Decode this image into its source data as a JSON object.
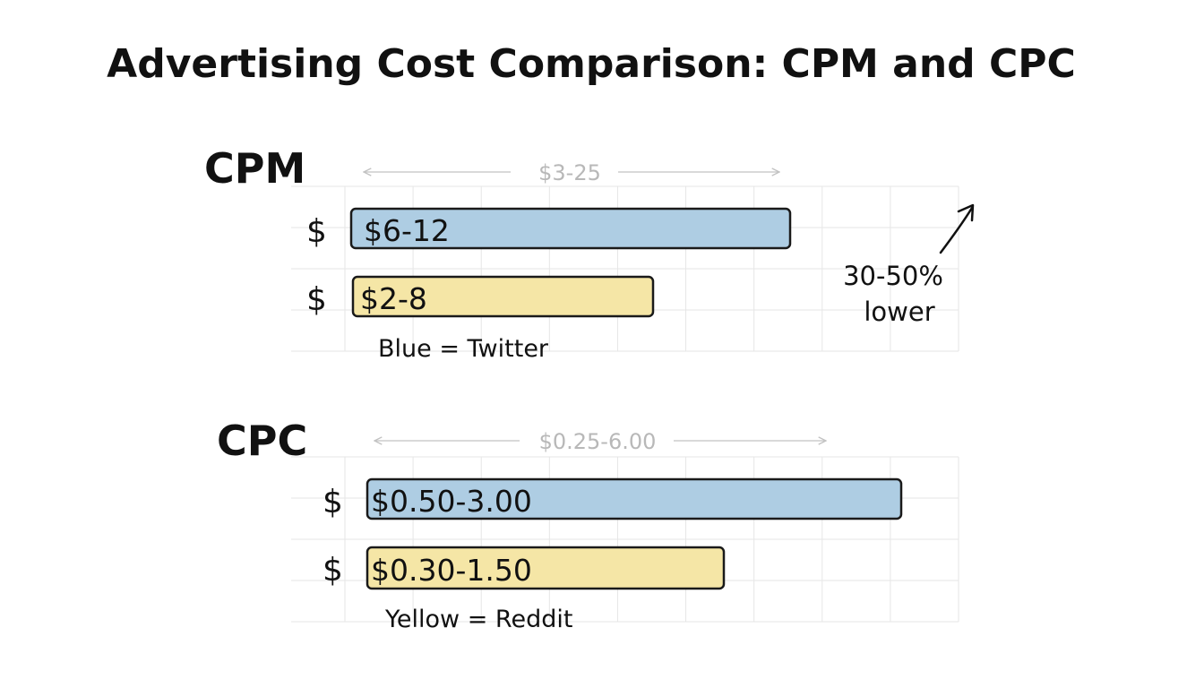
{
  "title": "Advertising Cost Comparison: CPM and CPC",
  "annotation": {
    "line1": "30-50%",
    "line2": "lower"
  },
  "colors": {
    "twitter": "#aecde3",
    "reddit": "#f5e6a6",
    "grid": "#e6e6e6",
    "range": "#c2c2c2",
    "ink": "#111111"
  },
  "chart_data": [
    {
      "type": "bar",
      "title": "CPM",
      "range_label": "$3-25",
      "range": [
        3,
        25
      ],
      "series": [
        {
          "name": "Twitter",
          "currency_symbol": "$",
          "label": "$6-12",
          "range": [
            6,
            12
          ]
        },
        {
          "name": "Reddit",
          "currency_symbol": "$",
          "label": "$2-8",
          "range": [
            2,
            8
          ]
        }
      ],
      "legend": "Blue = Twitter"
    },
    {
      "type": "bar",
      "title": "CPC",
      "range_label": "$0.25-6.00",
      "range": [
        0.25,
        6.0
      ],
      "series": [
        {
          "name": "Twitter",
          "currency_symbol": "$",
          "label": "$0.50-3.00",
          "range": [
            0.5,
            3.0
          ]
        },
        {
          "name": "Reddit",
          "currency_symbol": "$",
          "label": "$0.30-1.50",
          "range": [
            0.3,
            1.5
          ]
        }
      ],
      "legend": "Yellow = Reddit"
    }
  ]
}
